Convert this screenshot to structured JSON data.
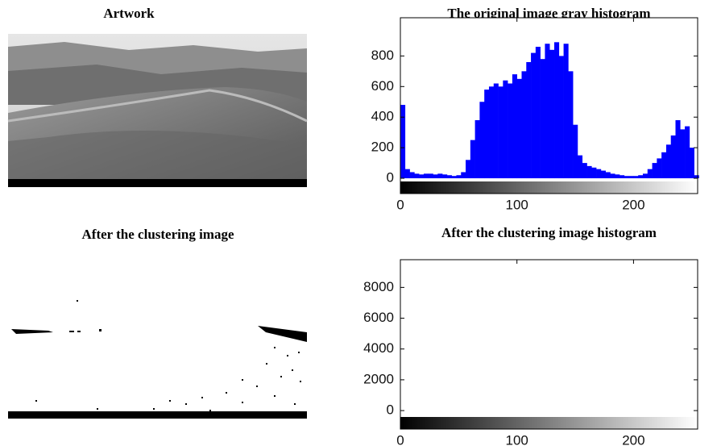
{
  "images": [
    {
      "title": "Artwork"
    },
    {
      "title": "After the clustering image"
    }
  ],
  "chart_data": [
    {
      "type": "histogram",
      "title": "The original image gray histogram",
      "color": "#0000ff",
      "bins": [
        0,
        4,
        8,
        12,
        16,
        20,
        24,
        28,
        32,
        36,
        40,
        44,
        48,
        52,
        56,
        60,
        64,
        68,
        72,
        76,
        80,
        84,
        88,
        92,
        96,
        100,
        104,
        108,
        112,
        116,
        120,
        124,
        128,
        132,
        136,
        140,
        144,
        148,
        152,
        156,
        160,
        164,
        168,
        172,
        176,
        180,
        184,
        188,
        192,
        196,
        200,
        204,
        208,
        212,
        216,
        220,
        224,
        228,
        232,
        236,
        240,
        244,
        248,
        252,
        256
      ],
      "values": [
        480,
        60,
        40,
        30,
        25,
        30,
        30,
        25,
        30,
        25,
        20,
        15,
        20,
        40,
        120,
        250,
        380,
        500,
        580,
        600,
        620,
        600,
        640,
        620,
        680,
        650,
        700,
        760,
        820,
        860,
        780,
        880,
        840,
        890,
        800,
        880,
        700,
        350,
        150,
        100,
        80,
        70,
        60,
        50,
        40,
        30,
        25,
        20,
        15,
        15,
        15,
        20,
        30,
        60,
        100,
        130,
        170,
        220,
        280,
        380,
        320,
        340,
        200,
        20
      ],
      "xlim": [
        0,
        255
      ],
      "xticks": [
        0,
        100,
        200
      ],
      "ylim": [
        -100,
        1050
      ],
      "yticks": [
        0,
        200,
        400,
        600,
        800
      ]
    },
    {
      "type": "histogram",
      "title": "After the clustering image histogram",
      "color": "#0000ff",
      "xlim": [
        0,
        255
      ],
      "xticks": [
        0,
        100,
        200
      ],
      "ylim": [
        -1200,
        9800
      ],
      "yticks": [
        0,
        2000,
        4000,
        6000,
        8000
      ]
    }
  ]
}
